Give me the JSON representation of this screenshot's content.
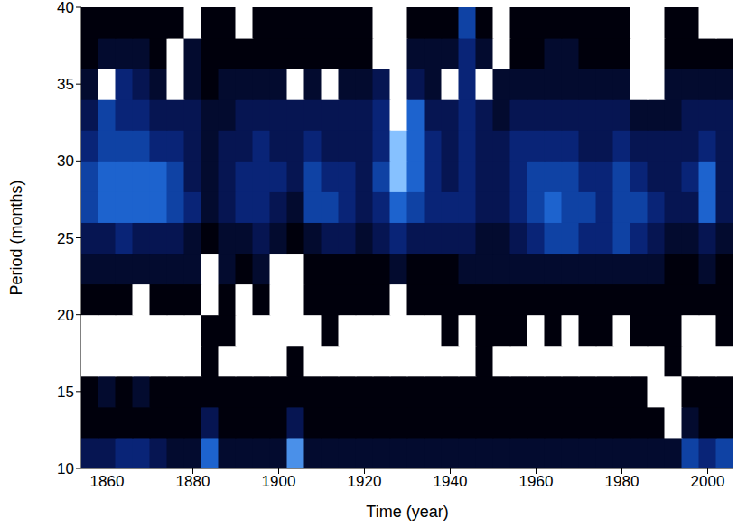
{
  "chart_data": {
    "type": "heatmap",
    "x_label": "Time (year)",
    "y_label": "Period (months)",
    "x": [
      1856,
      1860,
      1864,
      1868,
      1872,
      1876,
      1880,
      1884,
      1888,
      1892,
      1896,
      1900,
      1904,
      1908,
      1912,
      1916,
      1920,
      1924,
      1928,
      1932,
      1936,
      1940,
      1944,
      1948,
      1952,
      1956,
      1960,
      1964,
      1968,
      1972,
      1976,
      1980,
      1984,
      1988,
      1992,
      1996,
      2000,
      2004
    ],
    "y": [
      11,
      13,
      15,
      17,
      19,
      21,
      23,
      25,
      27,
      29,
      31,
      33,
      35,
      37,
      39
    ],
    "cells": [
      [
        3,
        3,
        4,
        4,
        3,
        2,
        2,
        6,
        2,
        2,
        2,
        2,
        7,
        2,
        2,
        2,
        2,
        2,
        2,
        2,
        2,
        2,
        2,
        2,
        2,
        2,
        2,
        2,
        2,
        2,
        2,
        2,
        2,
        2,
        2,
        5,
        4,
        5
      ],
      [
        1,
        1,
        1,
        1,
        1,
        1,
        1,
        3,
        1,
        1,
        1,
        1,
        3,
        1,
        1,
        1,
        1,
        1,
        1,
        1,
        1,
        1,
        1,
        1,
        1,
        1,
        1,
        1,
        1,
        1,
        1,
        1,
        1,
        1,
        9,
        2,
        1,
        1
      ],
      [
        1,
        2,
        1,
        2,
        1,
        1,
        1,
        1,
        1,
        1,
        1,
        1,
        1,
        1,
        1,
        1,
        1,
        1,
        1,
        1,
        1,
        1,
        1,
        1,
        1,
        1,
        1,
        1,
        1,
        1,
        1,
        1,
        1,
        9,
        9,
        1,
        1,
        1
      ],
      [
        9,
        9,
        9,
        9,
        9,
        9,
        9,
        1,
        9,
        9,
        9,
        9,
        1,
        9,
        9,
        9,
        9,
        9,
        9,
        9,
        9,
        9,
        9,
        1,
        9,
        9,
        9,
        9,
        9,
        9,
        9,
        9,
        9,
        9,
        1,
        9,
        9,
        9
      ],
      [
        9,
        9,
        9,
        9,
        9,
        9,
        9,
        1,
        1,
        9,
        9,
        9,
        9,
        9,
        1,
        9,
        9,
        9,
        9,
        9,
        9,
        1,
        9,
        1,
        1,
        1,
        9,
        1,
        9,
        1,
        1,
        9,
        1,
        1,
        1,
        9,
        9,
        1
      ],
      [
        1,
        1,
        1,
        9,
        1,
        1,
        1,
        9,
        1,
        9,
        1,
        9,
        9,
        1,
        1,
        1,
        1,
        1,
        9,
        1,
        1,
        1,
        1,
        1,
        1,
        1,
        1,
        1,
        1,
        1,
        1,
        1,
        1,
        1,
        1,
        1,
        1,
        1
      ],
      [
        2,
        2,
        2,
        2,
        2,
        2,
        2,
        9,
        2,
        1,
        2,
        9,
        9,
        1,
        1,
        1,
        1,
        1,
        2,
        1,
        1,
        1,
        2,
        2,
        2,
        2,
        2,
        2,
        2,
        2,
        2,
        2,
        2,
        2,
        1,
        1,
        2,
        1
      ],
      [
        3,
        3,
        4,
        3,
        3,
        3,
        2,
        1,
        2,
        2,
        3,
        2,
        1,
        2,
        3,
        3,
        2,
        3,
        4,
        3,
        3,
        3,
        3,
        2,
        2,
        3,
        4,
        5,
        5,
        4,
        4,
        5,
        4,
        3,
        2,
        2,
        3,
        2
      ],
      [
        5,
        6,
        6,
        6,
        6,
        5,
        4,
        2,
        3,
        4,
        4,
        3,
        2,
        5,
        5,
        4,
        3,
        4,
        6,
        5,
        4,
        4,
        4,
        3,
        3,
        4,
        5,
        6,
        5,
        5,
        4,
        5,
        5,
        4,
        3,
        3,
        6,
        3
      ],
      [
        5,
        6,
        6,
        6,
        6,
        5,
        3,
        2,
        3,
        4,
        4,
        4,
        3,
        5,
        4,
        4,
        3,
        5,
        8,
        6,
        4,
        3,
        4,
        3,
        3,
        4,
        5,
        5,
        5,
        4,
        4,
        5,
        4,
        3,
        3,
        4,
        6,
        3
      ],
      [
        4,
        5,
        5,
        5,
        4,
        4,
        3,
        2,
        3,
        3,
        4,
        3,
        3,
        4,
        3,
        3,
        3,
        4,
        8,
        6,
        4,
        3,
        4,
        3,
        3,
        4,
        4,
        4,
        4,
        3,
        3,
        4,
        3,
        3,
        3,
        3,
        4,
        3
      ],
      [
        3,
        5,
        4,
        4,
        3,
        3,
        3,
        2,
        2,
        3,
        3,
        3,
        3,
        3,
        3,
        3,
        3,
        4,
        9,
        6,
        3,
        3,
        4,
        3,
        2,
        3,
        3,
        3,
        3,
        3,
        3,
        3,
        2,
        2,
        2,
        3,
        3,
        3
      ],
      [
        2,
        9,
        4,
        3,
        2,
        9,
        2,
        1,
        2,
        2,
        2,
        2,
        9,
        2,
        9,
        2,
        2,
        3,
        9,
        3,
        2,
        9,
        4,
        9,
        2,
        2,
        2,
        2,
        2,
        2,
        2,
        2,
        9,
        9,
        2,
        2,
        2,
        2
      ],
      [
        1,
        2,
        2,
        2,
        1,
        9,
        2,
        1,
        1,
        1,
        1,
        1,
        1,
        1,
        1,
        1,
        1,
        9,
        9,
        2,
        2,
        2,
        4,
        2,
        9,
        1,
        1,
        2,
        2,
        1,
        1,
        1,
        9,
        9,
        1,
        1,
        1,
        1
      ],
      [
        1,
        1,
        1,
        1,
        1,
        1,
        9,
        1,
        1,
        9,
        1,
        1,
        1,
        1,
        1,
        1,
        1,
        9,
        9,
        1,
        1,
        1,
        5,
        1,
        9,
        1,
        1,
        1,
        1,
        1,
        1,
        1,
        9,
        9,
        1,
        1,
        9,
        9
      ]
    ],
    "xlim": [
      1854,
      2006
    ],
    "ylim": [
      10,
      40
    ],
    "xticks": [
      1860,
      1880,
      1900,
      1920,
      1940,
      1960,
      1980,
      2000
    ],
    "yticks": [
      10,
      15,
      20,
      25,
      30,
      35,
      40
    ]
  }
}
